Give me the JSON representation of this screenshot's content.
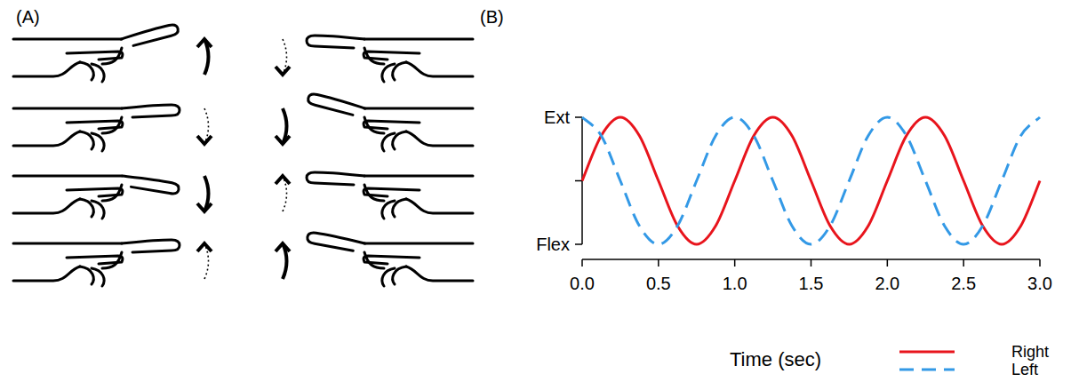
{
  "panel_labels": [
    "(A)",
    "(B)"
  ],
  "chart_data": {
    "type": "line",
    "xlabel": "Time (sec)",
    "x": [
      0,
      0.125,
      0.25,
      0.375,
      0.5,
      0.625,
      0.75,
      0.875,
      1,
      1.125,
      1.25,
      1.375,
      1.5,
      1.625,
      1.75,
      1.875,
      2,
      2.125,
      2.25,
      2.375,
      2.5,
      2.625,
      2.75,
      2.875,
      3
    ],
    "series": [
      {
        "name": "Right",
        "color": "#e8141c",
        "line_style": "solid",
        "values": [
          0,
          0.71,
          1,
          0.71,
          0,
          -0.71,
          -1,
          -0.71,
          0,
          0.71,
          1,
          0.71,
          0,
          -0.71,
          -1,
          -0.71,
          0,
          0.71,
          1,
          0.71,
          0,
          -0.71,
          -1,
          -0.71,
          0
        ]
      },
      {
        "name": "Left",
        "color": "#3399e6",
        "line_style": "dashed",
        "values": [
          1,
          0.71,
          0,
          -0.71,
          -1,
          -0.71,
          0,
          0.71,
          1,
          0.71,
          0,
          -0.71,
          -1,
          -0.71,
          0,
          0.71,
          1,
          0.71,
          0,
          -0.71,
          -1,
          -0.71,
          0,
          0.71,
          1
        ]
      }
    ],
    "xlim": [
      0,
      3
    ],
    "xticks": [
      {
        "value": 0,
        "label": "0.0"
      },
      {
        "value": 0.5,
        "label": "0.5"
      },
      {
        "value": 1,
        "label": "1.0"
      },
      {
        "value": 1.5,
        "label": "1.5"
      },
      {
        "value": 2,
        "label": "2.0"
      },
      {
        "value": 2.5,
        "label": "2.5"
      },
      {
        "value": 3,
        "label": "3.0"
      }
    ],
    "ylim": [
      -1,
      1
    ],
    "yticks": [
      {
        "value": -1,
        "label": "Flex"
      },
      {
        "value": 0,
        "label": null
      },
      {
        "value": 1,
        "label": "Ext"
      }
    ],
    "grid": false,
    "legend": "lower right"
  }
}
